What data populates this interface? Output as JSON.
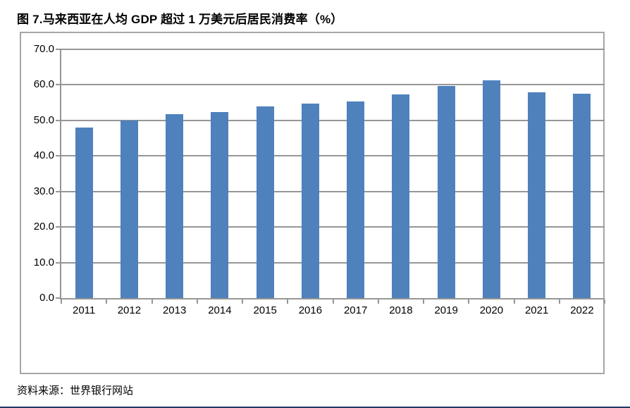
{
  "page": {
    "title": "图 7.马来西亚在人均 GDP 超过 1 万美元后居民消费率（%）",
    "source": "资料来源：世界银行网站"
  },
  "colors": {
    "bar": "#4f81bd",
    "gridline": "#969696",
    "frame_border": "#a6a6a6",
    "text": "#000000",
    "footer_rule": "#1f3864"
  },
  "chart_data": {
    "type": "bar",
    "title": "图 7.马来西亚在人均 GDP 超过 1 万美元后居民消费率（%）",
    "categories": [
      "2011",
      "2012",
      "2013",
      "2014",
      "2015",
      "2016",
      "2017",
      "2018",
      "2019",
      "2020",
      "2021",
      "2022"
    ],
    "values": [
      48.0,
      50.0,
      51.8,
      52.3,
      54.0,
      54.8,
      55.4,
      57.3,
      59.7,
      61.3,
      58.0,
      57.5
    ],
    "xlabel": "",
    "ylabel": "",
    "ylim": [
      0,
      70
    ],
    "y_tick_labels": [
      "0.0",
      "10.0",
      "20.0",
      "30.0",
      "40.0",
      "50.0",
      "60.0",
      "70.0"
    ],
    "grid": true,
    "legend": false,
    "bar_color": "#4f81bd",
    "source": "资料来源：世界银行网站"
  }
}
